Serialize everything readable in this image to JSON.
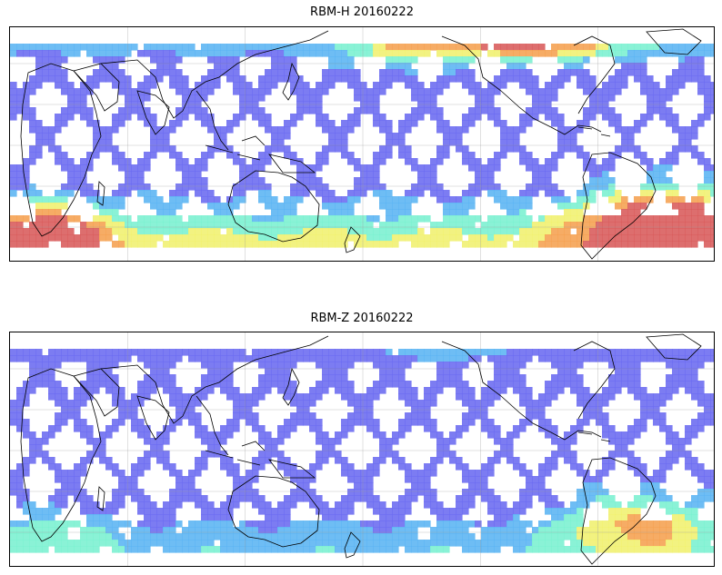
{
  "panels": [
    {
      "title": "RBM-H 20160222",
      "map": {
        "projection": "plate-carree",
        "central_longitude": 180,
        "coverage": "swath orbits between about 58S and 58N",
        "field_level": "high",
        "hotspots": [
          "south-atlantic-anomaly",
          "north-atlantic-high",
          "southern-ocean-high"
        ]
      }
    },
    {
      "title": "RBM-Z 20160222",
      "map": {
        "projection": "plate-carree",
        "central_longitude": 180,
        "coverage": "swath orbits between about 58S and 58N",
        "field_level": "moderate",
        "hotspots": [
          "south-atlantic-anomaly"
        ]
      }
    }
  ],
  "colors": {
    "low": "#6a6af0",
    "mid_low": "#5ab4f2",
    "mid": "#7af0d0",
    "mid_high": "#f0f070",
    "high": "#f5a050",
    "peak": "#d85a5a"
  }
}
